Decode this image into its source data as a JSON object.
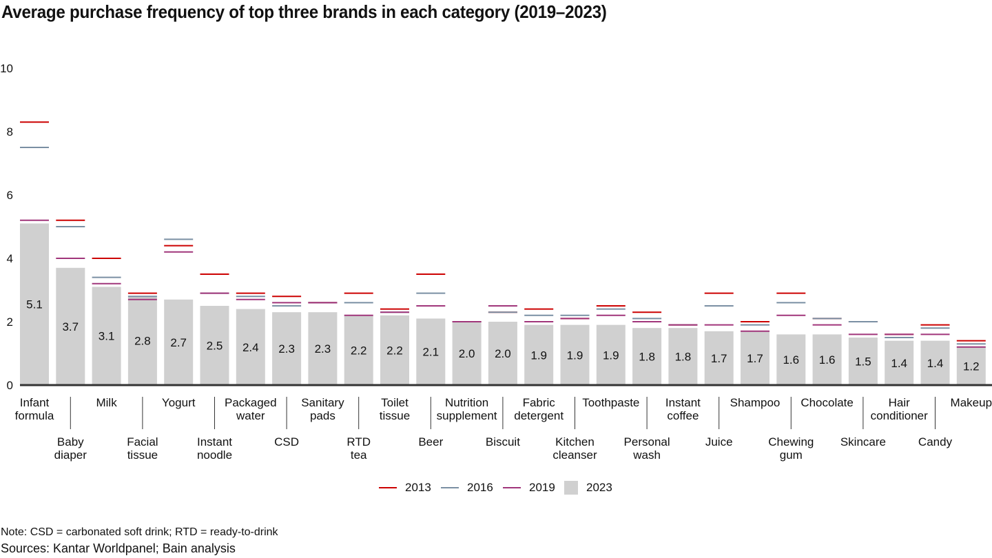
{
  "chart_data": {
    "type": "bar",
    "title": "Average purchase frequency of top three brands in each category (2019–2023)",
    "xlabel": "",
    "ylabel": "",
    "ylim": [
      0,
      10
    ],
    "yticks": [
      0,
      2,
      4,
      6,
      8,
      10
    ],
    "grid": false,
    "legend_position": "bottom-center",
    "categories": [
      "Infant formula",
      "Baby diaper",
      "Milk",
      "Facial tissue",
      "Yogurt",
      "Instant noodle",
      "Packaged water",
      "CSD",
      "Sanitary pads",
      "RTD tea",
      "Toilet tissue",
      "Beer",
      "Nutrition supplement",
      "Biscuit",
      "Fabric detergent",
      "Kitchen cleanser",
      "Toothpaste",
      "Personal wash",
      "Instant coffee",
      "Juice",
      "Shampoo",
      "Chewing gum",
      "Chocolate",
      "Skincare",
      "Hair conditioner",
      "Candy",
      "Makeup"
    ],
    "category_label_lines": [
      [
        "Infant",
        "formula"
      ],
      [
        "Baby",
        "diaper"
      ],
      [
        "Milk"
      ],
      [
        "Facial",
        "tissue"
      ],
      [
        "Yogurt"
      ],
      [
        "Instant",
        "noodle"
      ],
      [
        "Packaged",
        "water"
      ],
      [
        "CSD"
      ],
      [
        "Sanitary",
        "pads"
      ],
      [
        "RTD",
        "tea"
      ],
      [
        "Toilet",
        "tissue"
      ],
      [
        "Beer"
      ],
      [
        "Nutrition",
        "supplement"
      ],
      [
        "Biscuit"
      ],
      [
        "Fabric",
        "detergent"
      ],
      [
        "Kitchen",
        "cleanser"
      ],
      [
        "Toothpaste"
      ],
      [
        "Personal",
        "wash"
      ],
      [
        "Instant",
        "coffee"
      ],
      [
        "Juice"
      ],
      [
        "Shampoo"
      ],
      [
        "Chewing",
        "gum"
      ],
      [
        "Chocolate"
      ],
      [
        "Skincare"
      ],
      [
        "Hair",
        "conditioner"
      ],
      [
        "Candy"
      ],
      [
        "Makeup"
      ]
    ],
    "series": [
      {
        "name": "2013",
        "kind": "marker",
        "color": "#cc0000",
        "values": [
          8.3,
          5.2,
          4.0,
          2.9,
          4.4,
          3.5,
          2.9,
          2.8,
          2.6,
          2.9,
          2.4,
          3.5,
          2.0,
          2.3,
          2.4,
          2.1,
          2.5,
          2.3,
          1.9,
          2.9,
          2.0,
          2.9,
          2.1,
          2.0,
          1.6,
          1.9,
          1.4
        ]
      },
      {
        "name": "2016",
        "kind": "marker",
        "color": "#7a8fa3",
        "values": [
          7.5,
          5.0,
          3.4,
          2.8,
          4.6,
          2.9,
          2.8,
          2.5,
          2.6,
          2.6,
          2.3,
          2.9,
          2.0,
          2.3,
          2.2,
          2.2,
          2.4,
          2.1,
          1.9,
          2.5,
          1.9,
          2.6,
          2.1,
          2.0,
          1.5,
          1.8,
          1.3
        ]
      },
      {
        "name": "2019",
        "kind": "marker",
        "color": "#a0357a",
        "values": [
          5.2,
          4.0,
          3.2,
          2.7,
          4.2,
          2.9,
          2.7,
          2.6,
          2.6,
          2.2,
          2.3,
          2.5,
          2.0,
          2.5,
          2.0,
          2.1,
          2.2,
          2.0,
          1.9,
          1.9,
          1.7,
          2.2,
          1.9,
          1.6,
          1.6,
          1.6,
          1.2
        ]
      },
      {
        "name": "2023",
        "kind": "bar",
        "color": "#d0d0d0",
        "values": [
          5.1,
          3.7,
          3.1,
          2.8,
          2.7,
          2.5,
          2.4,
          2.3,
          2.3,
          2.2,
          2.2,
          2.1,
          2.0,
          2.0,
          1.9,
          1.9,
          1.9,
          1.8,
          1.8,
          1.7,
          1.7,
          1.6,
          1.6,
          1.5,
          1.4,
          1.4,
          1.2
        ],
        "labels": [
          "5.1",
          "3.7",
          "3.1",
          "2.8",
          "2.7",
          "2.5",
          "2.4",
          "2.3",
          "2.3",
          "2.2",
          "2.2",
          "2.1",
          "2.0",
          "2.0",
          "1.9",
          "1.9",
          "1.9",
          "1.8",
          "1.8",
          "1.7",
          "1.7",
          "1.6",
          "1.6",
          "1.5",
          "1.4",
          "1.4",
          "1.2"
        ]
      }
    ]
  },
  "legend": [
    {
      "label": "2013",
      "color": "#cc0000",
      "kind": "line"
    },
    {
      "label": "2016",
      "color": "#7a8fa3",
      "kind": "line"
    },
    {
      "label": "2019",
      "color": "#a0357a",
      "kind": "line"
    },
    {
      "label": "2023",
      "color": "#d0d0d0",
      "kind": "box"
    }
  ],
  "footer": {
    "note": "Note: CSD = carbonated soft drink; RTD = ready-to-drink",
    "sources": "Sources: Kantar Worldpanel; Bain analysis"
  }
}
